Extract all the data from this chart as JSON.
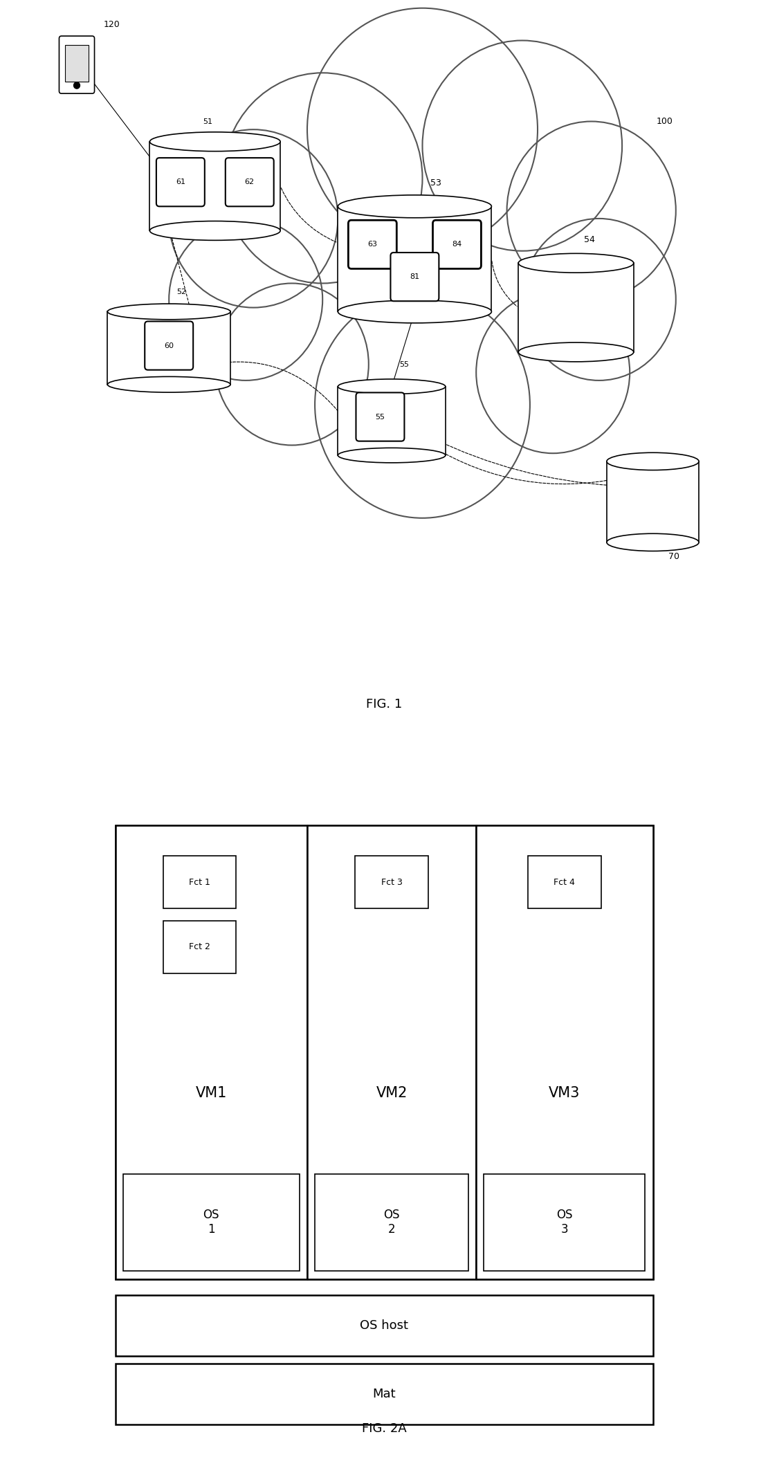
{
  "fig_width": 11.1,
  "fig_height": 21.06,
  "bg_color": "#ffffff",
  "fig1_caption": "FIG. 1",
  "fig2_caption": "FIG. 2A",
  "cloud_label": "100",
  "mobile_label": "120",
  "node51_label": "51",
  "node52_label": "52",
  "node53_label": "53",
  "node54_label": "54",
  "node55_label": "55",
  "node70_label": "70",
  "vm_labels": [
    "61",
    "62"
  ],
  "vm53_labels": [
    "63",
    "84",
    "81"
  ],
  "vm52_labels": [
    "60"
  ],
  "vm55_labels": [
    "55"
  ],
  "fig2_vm1_fcts": [
    "Fct 1",
    "Fct 2"
  ],
  "fig2_vm2_fcts": [
    "Fct 3"
  ],
  "fig2_vm3_fcts": [
    "Fct 4"
  ],
  "fig2_vms": [
    "VM1",
    "VM2",
    "VM3"
  ],
  "fig2_os": [
    "OS\n1",
    "OS\n2",
    "OS\n3"
  ],
  "fig2_oshost": "OS host",
  "fig2_mat": "Mat"
}
